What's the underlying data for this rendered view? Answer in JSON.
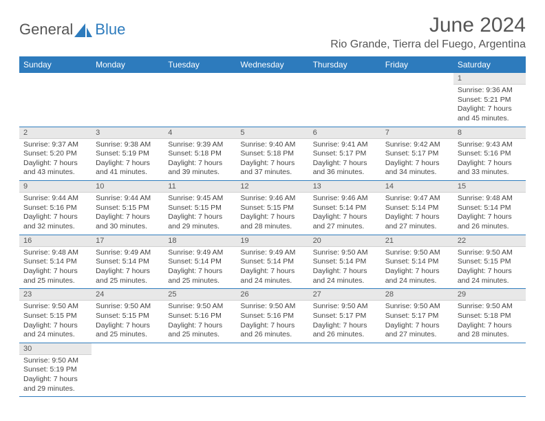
{
  "logo": {
    "text1": "General",
    "text2": "Blue"
  },
  "header": {
    "month": "June 2024",
    "location": "Rio Grande, Tierra del Fuego, Argentina"
  },
  "colors": {
    "header_bg": "#2d7bbd",
    "header_fg": "#ffffff",
    "daynum_bg": "#e8e8e8",
    "row_border": "#2d7bbd"
  },
  "weekdays": [
    "Sunday",
    "Monday",
    "Tuesday",
    "Wednesday",
    "Thursday",
    "Friday",
    "Saturday"
  ],
  "weeks": [
    [
      null,
      null,
      null,
      null,
      null,
      null,
      {
        "n": 1,
        "sr": "9:36 AM",
        "ss": "5:21 PM",
        "dl": "7 hours and 45 minutes."
      }
    ],
    [
      {
        "n": 2,
        "sr": "9:37 AM",
        "ss": "5:20 PM",
        "dl": "7 hours and 43 minutes."
      },
      {
        "n": 3,
        "sr": "9:38 AM",
        "ss": "5:19 PM",
        "dl": "7 hours and 41 minutes."
      },
      {
        "n": 4,
        "sr": "9:39 AM",
        "ss": "5:18 PM",
        "dl": "7 hours and 39 minutes."
      },
      {
        "n": 5,
        "sr": "9:40 AM",
        "ss": "5:18 PM",
        "dl": "7 hours and 37 minutes."
      },
      {
        "n": 6,
        "sr": "9:41 AM",
        "ss": "5:17 PM",
        "dl": "7 hours and 36 minutes."
      },
      {
        "n": 7,
        "sr": "9:42 AM",
        "ss": "5:17 PM",
        "dl": "7 hours and 34 minutes."
      },
      {
        "n": 8,
        "sr": "9:43 AM",
        "ss": "5:16 PM",
        "dl": "7 hours and 33 minutes."
      }
    ],
    [
      {
        "n": 9,
        "sr": "9:44 AM",
        "ss": "5:16 PM",
        "dl": "7 hours and 32 minutes."
      },
      {
        "n": 10,
        "sr": "9:44 AM",
        "ss": "5:15 PM",
        "dl": "7 hours and 30 minutes."
      },
      {
        "n": 11,
        "sr": "9:45 AM",
        "ss": "5:15 PM",
        "dl": "7 hours and 29 minutes."
      },
      {
        "n": 12,
        "sr": "9:46 AM",
        "ss": "5:15 PM",
        "dl": "7 hours and 28 minutes."
      },
      {
        "n": 13,
        "sr": "9:46 AM",
        "ss": "5:14 PM",
        "dl": "7 hours and 27 minutes."
      },
      {
        "n": 14,
        "sr": "9:47 AM",
        "ss": "5:14 PM",
        "dl": "7 hours and 27 minutes."
      },
      {
        "n": 15,
        "sr": "9:48 AM",
        "ss": "5:14 PM",
        "dl": "7 hours and 26 minutes."
      }
    ],
    [
      {
        "n": 16,
        "sr": "9:48 AM",
        "ss": "5:14 PM",
        "dl": "7 hours and 25 minutes."
      },
      {
        "n": 17,
        "sr": "9:49 AM",
        "ss": "5:14 PM",
        "dl": "7 hours and 25 minutes."
      },
      {
        "n": 18,
        "sr": "9:49 AM",
        "ss": "5:14 PM",
        "dl": "7 hours and 25 minutes."
      },
      {
        "n": 19,
        "sr": "9:49 AM",
        "ss": "5:14 PM",
        "dl": "7 hours and 24 minutes."
      },
      {
        "n": 20,
        "sr": "9:50 AM",
        "ss": "5:14 PM",
        "dl": "7 hours and 24 minutes."
      },
      {
        "n": 21,
        "sr": "9:50 AM",
        "ss": "5:14 PM",
        "dl": "7 hours and 24 minutes."
      },
      {
        "n": 22,
        "sr": "9:50 AM",
        "ss": "5:15 PM",
        "dl": "7 hours and 24 minutes."
      }
    ],
    [
      {
        "n": 23,
        "sr": "9:50 AM",
        "ss": "5:15 PM",
        "dl": "7 hours and 24 minutes."
      },
      {
        "n": 24,
        "sr": "9:50 AM",
        "ss": "5:15 PM",
        "dl": "7 hours and 25 minutes."
      },
      {
        "n": 25,
        "sr": "9:50 AM",
        "ss": "5:16 PM",
        "dl": "7 hours and 25 minutes."
      },
      {
        "n": 26,
        "sr": "9:50 AM",
        "ss": "5:16 PM",
        "dl": "7 hours and 26 minutes."
      },
      {
        "n": 27,
        "sr": "9:50 AM",
        "ss": "5:17 PM",
        "dl": "7 hours and 26 minutes."
      },
      {
        "n": 28,
        "sr": "9:50 AM",
        "ss": "5:17 PM",
        "dl": "7 hours and 27 minutes."
      },
      {
        "n": 29,
        "sr": "9:50 AM",
        "ss": "5:18 PM",
        "dl": "7 hours and 28 minutes."
      }
    ],
    [
      {
        "n": 30,
        "sr": "9:50 AM",
        "ss": "5:19 PM",
        "dl": "7 hours and 29 minutes."
      },
      null,
      null,
      null,
      null,
      null,
      null
    ]
  ],
  "labels": {
    "sunrise": "Sunrise:",
    "sunset": "Sunset:",
    "daylight": "Daylight:"
  }
}
